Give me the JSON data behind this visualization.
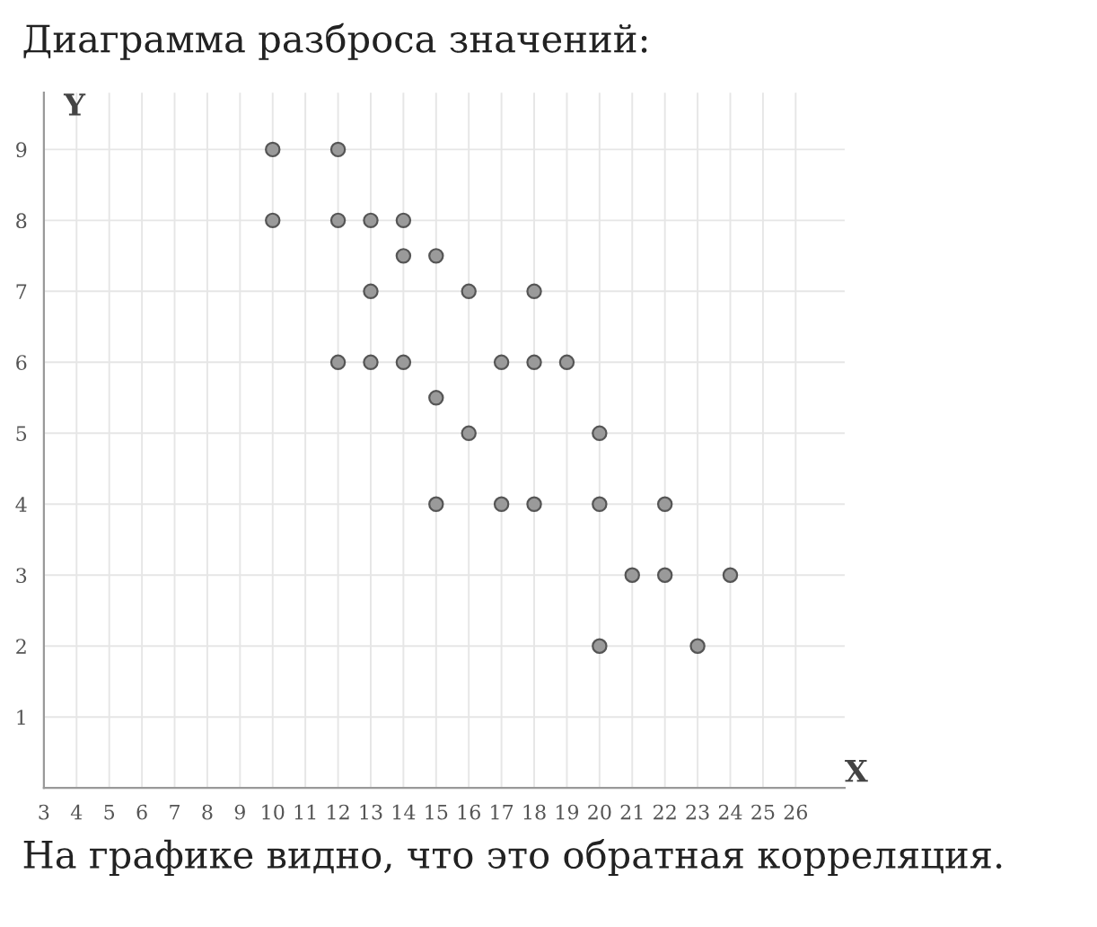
{
  "chart_data": {
    "type": "scatter",
    "title": "Диаграмма разброса значений:",
    "xlabel": "X",
    "ylabel": "Y",
    "annotations": [
      "На графике видно, что это обратная корреляция."
    ],
    "x": [
      10,
      12,
      10,
      12,
      13,
      14,
      14,
      15,
      13,
      16,
      18,
      12,
      13,
      14,
      17,
      18,
      19,
      15,
      16,
      20,
      15,
      17,
      18,
      20,
      22,
      21,
      22,
      24,
      20,
      23
    ],
    "series": [
      {
        "color": "#9a9a9a",
        "values": [
          9,
          9,
          8,
          8,
          8,
          8,
          7.5,
          7.5,
          7,
          7,
          7,
          6,
          6,
          6,
          6,
          6,
          6,
          5.5,
          5,
          5,
          4,
          4,
          4,
          4,
          4,
          3,
          3,
          3,
          2,
          2
        ]
      }
    ],
    "xlim": [
      3,
      27.5
    ],
    "ylim": [
      0,
      9.8
    ],
    "xticks": [
      3,
      4,
      5,
      6,
      7,
      8,
      9,
      10,
      11,
      12,
      13,
      14,
      15,
      16,
      17,
      18,
      19,
      20,
      21,
      22,
      23,
      24,
      25,
      26
    ],
    "yticks": [
      1,
      2,
      3,
      4,
      5,
      6,
      7,
      8,
      9
    ],
    "grid": true,
    "marker": "circle"
  }
}
